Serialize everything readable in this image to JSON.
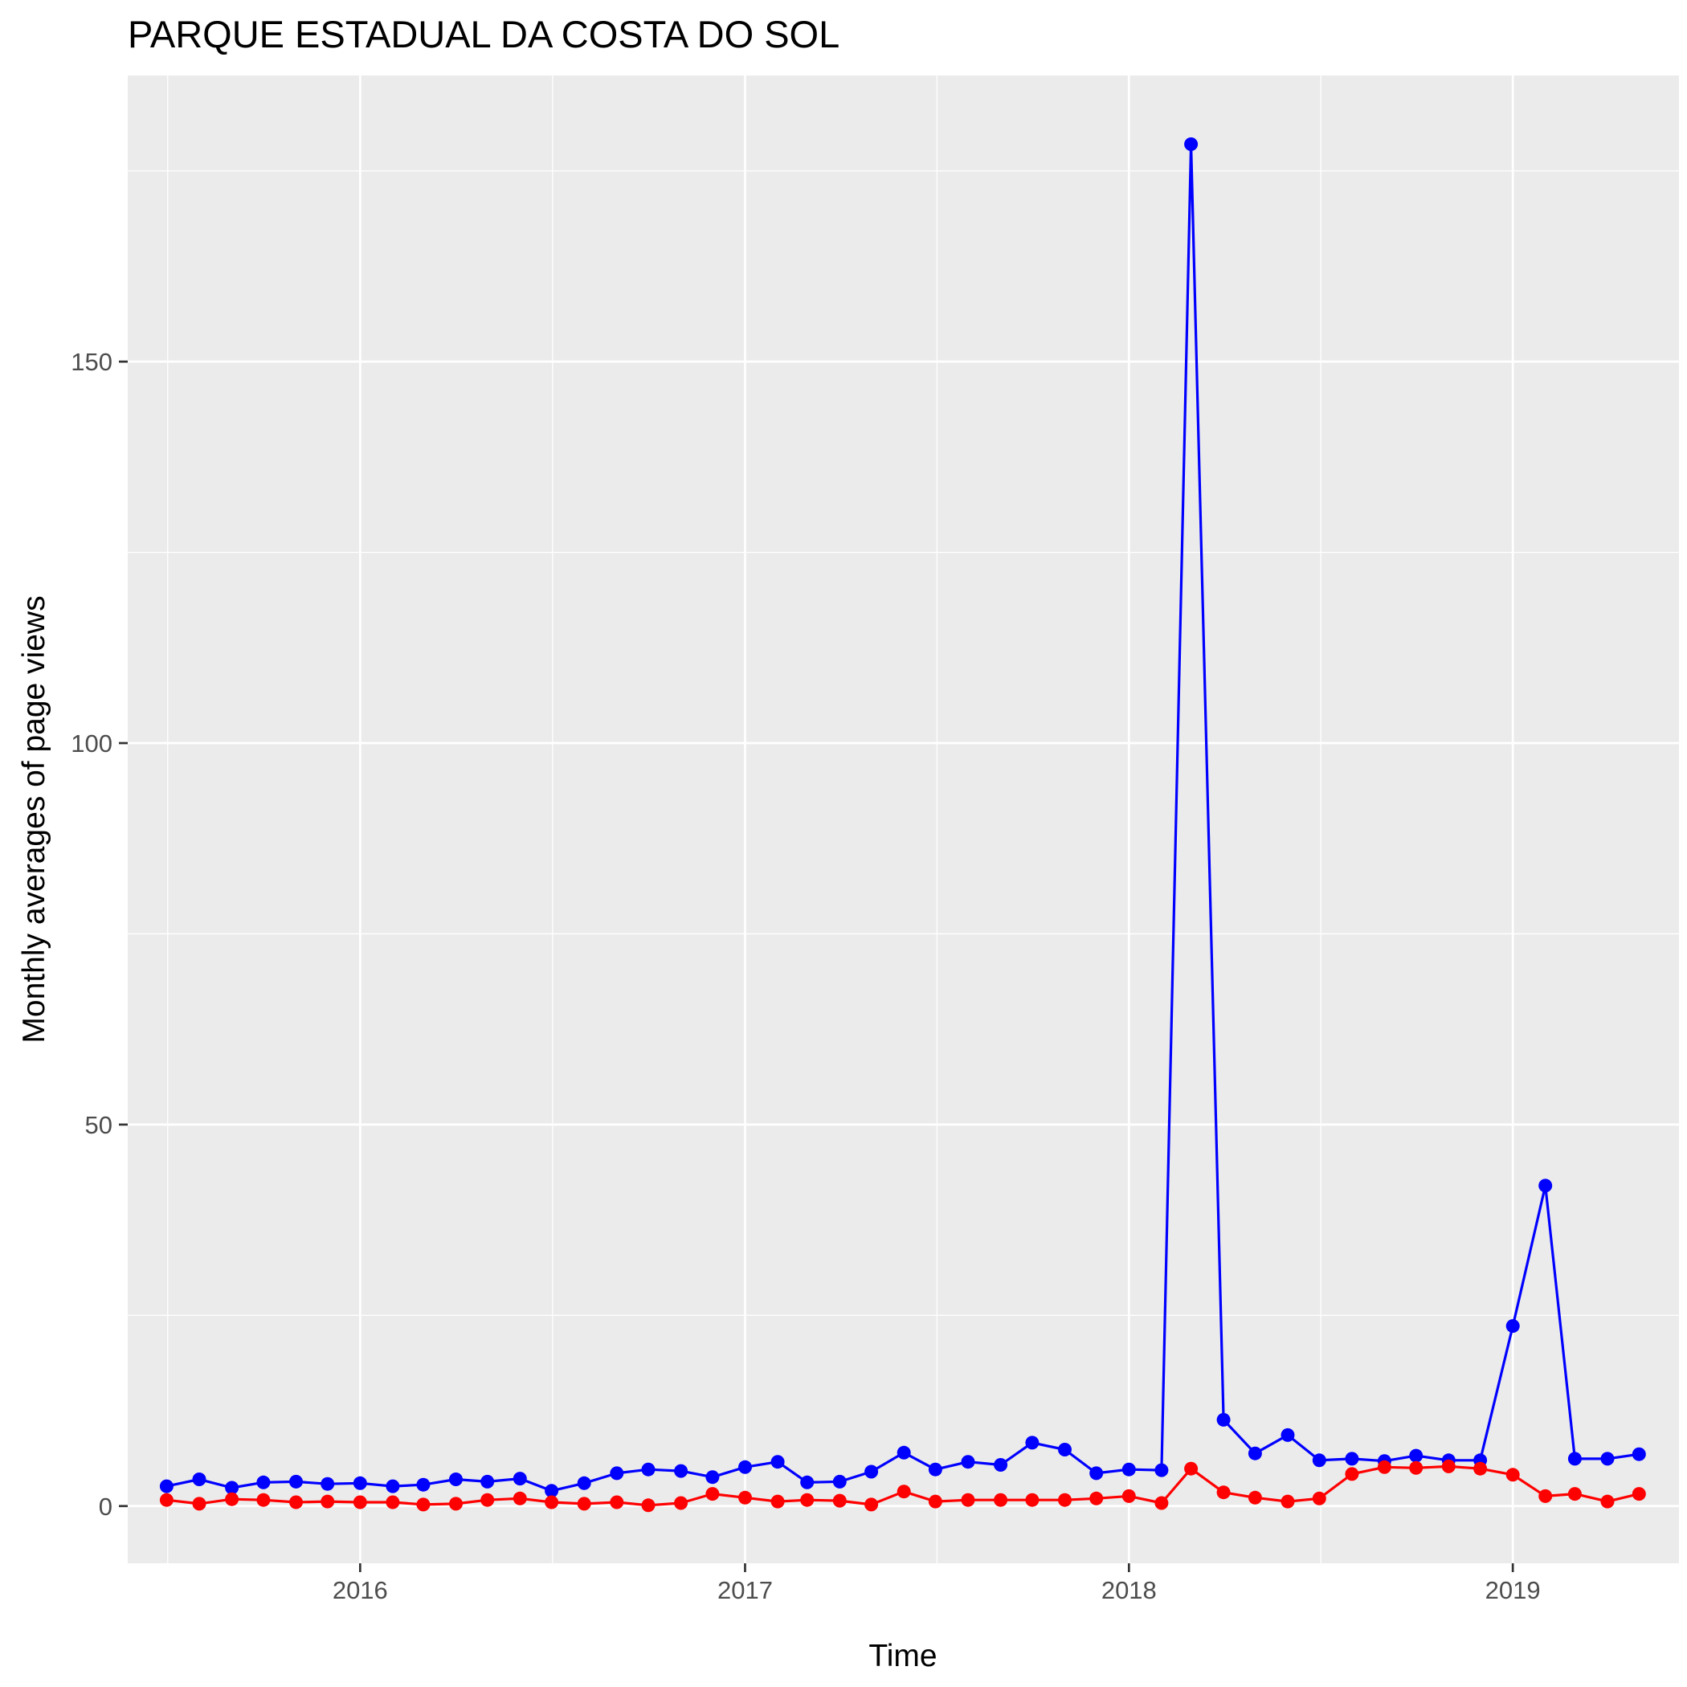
{
  "chart_data": {
    "type": "line",
    "title": "PARQUE ESTADUAL DA COSTA DO SOL",
    "xlabel": "Time",
    "ylabel": "Monthly averages of page views",
    "x_ticks": [
      "2016",
      "2017",
      "2018",
      "2019"
    ],
    "y_ticks": [
      "0",
      "50",
      "100",
      "150"
    ],
    "ylim": [
      -7.5,
      187.5
    ],
    "xlim": [
      "2015-05-25",
      "2019-06-08"
    ],
    "grid": true,
    "legend": "none",
    "x": [
      "2015-07",
      "2015-08",
      "2015-09",
      "2015-10",
      "2015-11",
      "2015-12",
      "2016-01",
      "2016-02",
      "2016-03",
      "2016-04",
      "2016-05",
      "2016-06",
      "2016-07",
      "2016-08",
      "2016-09",
      "2016-10",
      "2016-11",
      "2016-12",
      "2017-01",
      "2017-02",
      "2017-03",
      "2017-04",
      "2017-05",
      "2017-06",
      "2017-07",
      "2017-08",
      "2017-09",
      "2017-10",
      "2017-11",
      "2017-12",
      "2018-01",
      "2018-02",
      "2018-03",
      "2018-04",
      "2018-05",
      "2018-06",
      "2018-07",
      "2018-08",
      "2018-09",
      "2018-10",
      "2018-11",
      "2018-12",
      "2019-01",
      "2019-02",
      "2019-03",
      "2019-04",
      "2019-05"
    ],
    "series": [
      {
        "color": "#0000ff",
        "values": [
          2.6,
          3.5,
          2.4,
          3.1,
          3.2,
          2.9,
          3.0,
          2.6,
          2.8,
          3.5,
          3.2,
          3.6,
          2.0,
          3.0,
          4.3,
          4.8,
          4.6,
          3.8,
          5.1,
          5.8,
          3.1,
          3.2,
          4.5,
          7.0,
          4.8,
          5.8,
          5.4,
          8.3,
          7.4,
          4.3,
          4.8,
          4.7,
          178.5,
          11.3,
          6.9,
          9.3,
          6.0,
          6.2,
          5.9,
          6.6,
          6.0,
          6.0,
          23.6,
          42.0,
          6.2,
          6.2,
          6.8
        ]
      },
      {
        "color": "#ff0000",
        "values": [
          0.8,
          0.3,
          0.9,
          0.8,
          0.5,
          0.6,
          0.5,
          0.5,
          0.2,
          0.3,
          0.8,
          1.0,
          0.5,
          0.3,
          0.5,
          0.1,
          0.4,
          1.6,
          1.1,
          0.6,
          0.8,
          0.7,
          0.2,
          1.9,
          0.6,
          0.8,
          0.8,
          0.8,
          0.8,
          1.0,
          1.3,
          0.4,
          4.9,
          1.8,
          1.1,
          0.6,
          1.0,
          4.2,
          5.1,
          5.0,
          5.2,
          4.9,
          4.1,
          1.3,
          1.6,
          0.6,
          1.6
        ]
      }
    ]
  }
}
